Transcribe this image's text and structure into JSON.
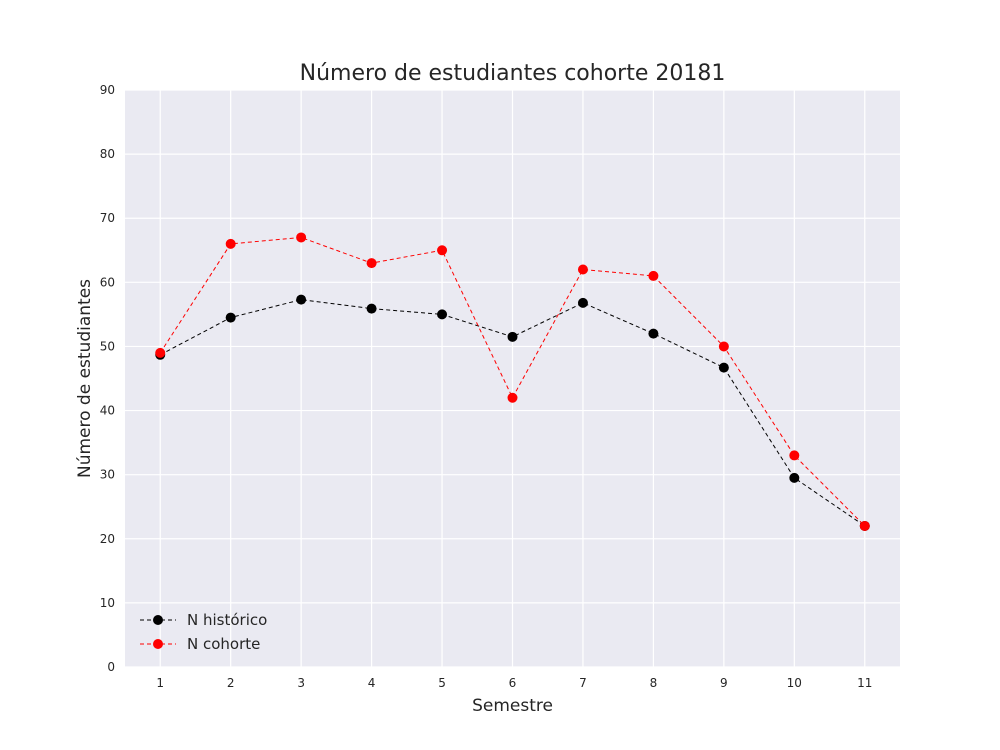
{
  "chart_data": {
    "type": "line",
    "title": "Número de estudiantes cohorte 20181",
    "xlabel": "Semestre",
    "ylabel": "Número de estudiantes",
    "x": [
      1,
      2,
      3,
      4,
      5,
      6,
      7,
      8,
      9,
      10,
      11
    ],
    "xlim": [
      0.5,
      11.5
    ],
    "ylim": [
      0,
      90
    ],
    "yticks": [
      0,
      10,
      20,
      30,
      40,
      50,
      60,
      70,
      80,
      90
    ],
    "grid": true,
    "background_color": "#eaeaf2",
    "legend_position": "lower-left",
    "series": [
      {
        "name": "N histórico",
        "color": "#000000",
        "line_style": "dashed",
        "marker": "circle",
        "values": [
          48.7,
          54.5,
          57.3,
          55.9,
          55.0,
          51.5,
          56.8,
          52.0,
          46.7,
          29.5,
          22.0
        ]
      },
      {
        "name": "N cohorte",
        "color": "#ff0000",
        "line_style": "dashed",
        "marker": "circle",
        "values": [
          49,
          66,
          67,
          63,
          65,
          42,
          62,
          61,
          50,
          33,
          22
        ]
      }
    ]
  }
}
